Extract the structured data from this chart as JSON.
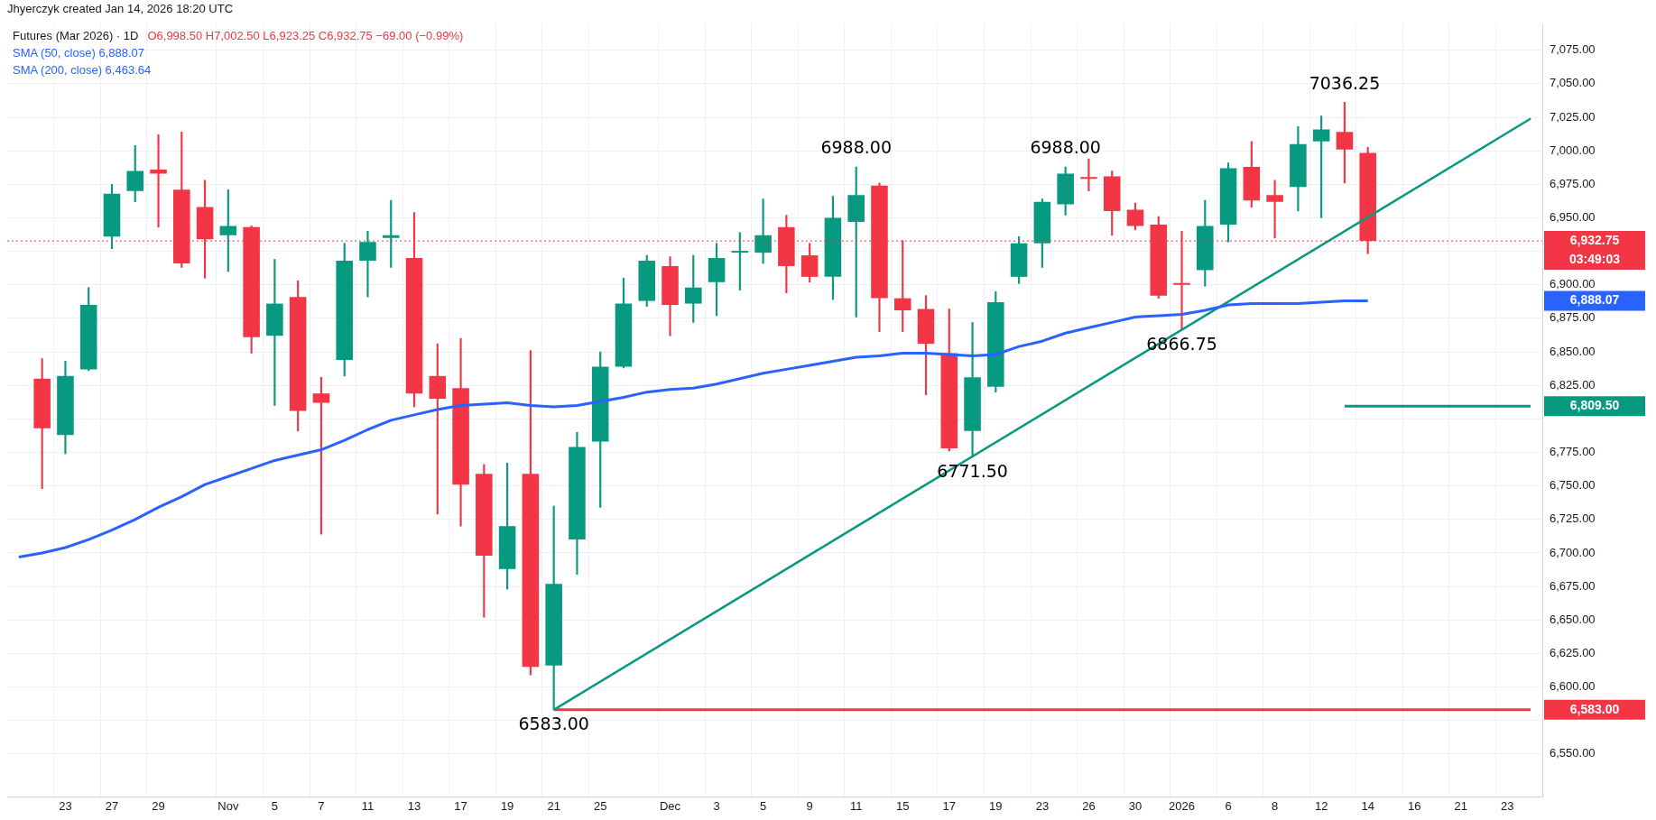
{
  "chart_data": {
    "type": "candlestick",
    "title": "Futures (Mar 2026) · 1D",
    "subtitle": "O6,998.50 H7,002.50 L6,923.25 C6,932.75 −69.00 (−0.99%)",
    "categories": [
      null,
      null,
      "23",
      null,
      "27",
      null,
      "29",
      null,
      null,
      "Nov",
      null,
      "5",
      null,
      "7",
      null,
      "11",
      null,
      "13",
      null,
      "17",
      null,
      "19",
      null,
      "21",
      null,
      "25",
      null,
      null,
      "Dec",
      null,
      "3",
      null,
      "5",
      null,
      "9",
      null,
      "11",
      null,
      "15",
      null,
      "17",
      null,
      "19",
      null,
      "23",
      null,
      "26",
      null,
      "30",
      null,
      "2026",
      null,
      "6",
      null,
      "8",
      null,
      "12",
      null,
      "14",
      null,
      "16",
      null,
      "21",
      null,
      "23",
      null
    ],
    "ohlc": [
      null,
      [
        6830,
        6845,
        6748,
        6793
      ],
      [
        6788,
        6843,
        6774,
        6832
      ],
      [
        6837,
        6898,
        6836,
        6885
      ],
      [
        6936,
        6975,
        6927,
        6968
      ],
      [
        6970,
        7004,
        6962,
        6985
      ],
      [
        6986,
        7012,
        6943,
        6983
      ],
      [
        6971,
        7014,
        6913,
        6916
      ],
      [
        6958,
        6978,
        6905,
        6934
      ],
      [
        6937,
        6971,
        6910,
        6944
      ],
      [
        6943,
        6944,
        6849,
        6861
      ],
      [
        6862,
        6919,
        6810,
        6886
      ],
      [
        6891,
        6903,
        6791,
        6806
      ],
      [
        6819,
        6831,
        6714,
        6812
      ],
      [
        6844,
        6931,
        6832,
        6918
      ],
      [
        6918,
        6940,
        6891,
        6932
      ],
      [
        6935,
        6963,
        6913,
        6937
      ],
      [
        6920,
        6954,
        6809,
        6819
      ],
      [
        6832,
        6856,
        6729,
        6815
      ],
      [
        6823,
        6860,
        6720,
        6751
      ],
      [
        6759,
        6766,
        6652,
        6698
      ],
      [
        6688,
        6767,
        6673,
        6720
      ],
      [
        6759,
        6851,
        6609,
        6615
      ],
      [
        6616,
        6735,
        6583,
        6677
      ],
      [
        6710,
        6790,
        6684,
        6779
      ],
      [
        6783,
        6850,
        6734,
        6839
      ],
      [
        6839,
        6905,
        6838,
        6886
      ],
      [
        6888,
        6922,
        6884,
        6918
      ],
      [
        6914,
        6921,
        6862,
        6885
      ],
      [
        6886,
        6922,
        6872,
        6898
      ],
      [
        6902,
        6931,
        6877,
        6920
      ],
      [
        6924,
        6939,
        6896,
        6925
      ],
      [
        6924,
        6964,
        6916,
        6937
      ],
      [
        6943,
        6952,
        6894,
        6914
      ],
      [
        6922,
        6931,
        6902,
        6906
      ],
      [
        6906,
        6966,
        6889,
        6950
      ],
      [
        6947,
        6988,
        6876,
        6967
      ],
      [
        6974,
        6976,
        6865,
        6890
      ],
      [
        6890,
        6933,
        6865,
        6881
      ],
      [
        6882,
        6892,
        6818,
        6856
      ],
      [
        6849,
        6882,
        6776,
        6778
      ],
      [
        6791,
        6872,
        6771.5,
        6831
      ],
      [
        6824,
        6895,
        6820,
        6887
      ],
      [
        6906,
        6936,
        6901,
        6931
      ],
      [
        6931,
        6964,
        6913,
        6962
      ],
      [
        6960,
        6988,
        6952,
        6983
      ],
      [
        6980,
        6994,
        6970,
        6979
      ],
      [
        6981,
        6985,
        6937,
        6955
      ],
      [
        6956,
        6961,
        6941,
        6944
      ],
      [
        6945,
        6951,
        6890,
        6892
      ],
      [
        6901,
        6940,
        6866.75,
        6900
      ],
      [
        6911,
        6963,
        6899,
        6944
      ],
      [
        6945,
        6991,
        6932,
        6987
      ],
      [
        6988,
        7007,
        6958,
        6963
      ],
      [
        6967,
        6978,
        6935,
        6962
      ],
      [
        6973,
        7018,
        6955,
        7005
      ],
      [
        7007,
        7026,
        6950,
        7016
      ],
      [
        7014,
        7036.25,
        6976,
        7001
      ],
      [
        6998.5,
        7002.5,
        6923.25,
        6932.75
      ],
      null,
      null,
      null,
      null,
      null,
      null,
      null
    ],
    "colors": [
      null,
      "#f23645",
      "#089981",
      "#089981",
      "#089981",
      "#089981",
      "#f23645",
      "#f23645",
      "#f23645",
      "#089981",
      "#f23645",
      "#089981",
      "#f23645",
      "#f23645",
      "#089981",
      "#089981",
      "#089981",
      "#f23645",
      "#f23645",
      "#f23645",
      "#f23645",
      "#089981",
      "#f23645",
      "#089981",
      "#089981",
      "#089981",
      "#089981",
      "#089981",
      "#f23645",
      "#089981",
      "#089981",
      "#089981",
      "#089981",
      "#f23645",
      "#f23645",
      "#089981",
      "#089981",
      "#f23645",
      "#f23645",
      "#f23645",
      "#f23645",
      "#089981",
      "#089981",
      "#089981",
      "#089981",
      "#089981",
      "#f23645",
      "#f23645",
      "#f23645",
      "#f23645",
      "#f23645",
      "#089981",
      "#089981",
      "#f23645",
      "#f23645",
      "#089981",
      "#089981",
      "#f23645",
      "#f23645",
      null,
      null,
      null,
      null,
      null,
      null,
      null
    ],
    "series": [
      {
        "name": "SMA (50, close)",
        "type": "line",
        "color": "#2962ff",
        "values": [
          6697,
          6700,
          6704,
          6710,
          6717,
          6725,
          6734,
          6742,
          6751,
          6757,
          6763,
          6769,
          6773,
          6777,
          6784,
          6792,
          6799,
          6803,
          6807,
          6810,
          6811,
          6812,
          6810,
          6809,
          6810,
          6813,
          6816,
          6820,
          6822,
          6823,
          6826,
          6830,
          6834,
          6837,
          6840,
          6843,
          6846,
          6847,
          6849,
          6849,
          6848,
          6847,
          6848,
          6854,
          6858,
          6864,
          6868,
          6872,
          6876,
          6877,
          6878,
          6881,
          6885,
          6886,
          6886,
          6886,
          6887,
          6888,
          6888.07,
          null,
          null,
          null,
          null,
          null,
          null,
          null
        ]
      },
      {
        "type": "line",
        "color": "#089981",
        "values": [
          null,
          null,
          null,
          null,
          null,
          null,
          null,
          null,
          null,
          null,
          null,
          null,
          null,
          null,
          null,
          null,
          null,
          null,
          null,
          null,
          null,
          null,
          null,
          6583,
          null,
          null,
          null,
          null,
          null,
          null,
          null,
          null,
          null,
          null,
          null,
          null,
          null,
          null,
          null,
          null,
          null,
          null,
          null,
          null,
          null,
          null,
          null,
          null,
          null,
          null,
          null,
          null,
          null,
          null,
          null,
          null,
          null,
          null,
          null,
          null,
          null,
          null,
          null,
          null,
          null,
          7024
        ]
      },
      {
        "name": "6,809.50",
        "type": "line",
        "color": "#089981",
        "values": [
          null,
          null,
          null,
          null,
          null,
          null,
          null,
          null,
          null,
          null,
          null,
          null,
          null,
          null,
          null,
          null,
          null,
          null,
          null,
          null,
          null,
          null,
          null,
          null,
          null,
          null,
          null,
          null,
          null,
          null,
          null,
          null,
          null,
          null,
          null,
          null,
          null,
          null,
          null,
          null,
          null,
          null,
          null,
          null,
          null,
          null,
          null,
          null,
          null,
          null,
          null,
          null,
          null,
          null,
          null,
          null,
          null,
          6809.5,
          null,
          null,
          null,
          null,
          null,
          null,
          null,
          6809.5
        ]
      },
      {
        "name": "6,583.00",
        "type": "line",
        "color": "#f23645",
        "values": [
          null,
          null,
          null,
          null,
          null,
          null,
          null,
          null,
          null,
          null,
          null,
          null,
          null,
          null,
          null,
          null,
          null,
          null,
          null,
          null,
          null,
          null,
          null,
          6583,
          null,
          null,
          null,
          null,
          null,
          null,
          null,
          null,
          null,
          null,
          null,
          null,
          null,
          null,
          null,
          null,
          null,
          null,
          null,
          null,
          null,
          null,
          null,
          null,
          null,
          null,
          null,
          null,
          null,
          null,
          null,
          null,
          null,
          null,
          null,
          null,
          null,
          null,
          null,
          null,
          null,
          6583
        ]
      }
    ],
    "ylim": [
      6518,
      7095
    ],
    "yticks": [
      {
        "value": 6550,
        "label": "6,550.00"
      },
      {
        "value": 6575,
        "label": null
      },
      {
        "value": 6600,
        "label": "6,600.00"
      },
      {
        "value": 6625,
        "label": "6,625.00"
      },
      {
        "value": 6650,
        "label": "6,650.00"
      },
      {
        "value": 6675,
        "label": "6,675.00"
      },
      {
        "value": 6700,
        "label": "6,700.00"
      },
      {
        "value": 6725,
        "label": "6,725.00"
      },
      {
        "value": 6750,
        "label": "6,750.00"
      },
      {
        "value": 6775,
        "label": "6,775.00"
      },
      {
        "value": 6800,
        "label": null
      },
      {
        "value": 6825,
        "label": "6,825.00"
      },
      {
        "value": 6850,
        "label": "6,850.00"
      },
      {
        "value": 6875,
        "label": "6,875.00"
      },
      {
        "value": 6900,
        "label": "6,900.00"
      },
      {
        "value": 6925,
        "label": null
      },
      {
        "value": 6950,
        "label": "6,950.00"
      },
      {
        "value": 6975,
        "label": "6,975.00"
      },
      {
        "value": 7000,
        "label": "7,000.00"
      },
      {
        "value": 7025,
        "label": "7,025.00"
      },
      {
        "value": 7050,
        "label": "7,050.00"
      },
      {
        "value": 7075,
        "label": "7,075.00"
      }
    ],
    "ref_lines": [
      {
        "axis": "y",
        "value": 6932.75,
        "label": "6,932.75",
        "color": "#f23645",
        "line_style": "dotted"
      }
    ],
    "annotations": [
      "Jhyerczyk created Jan 14, 2026 18:20 UTC",
      "SMA (200, close) 6,463.64",
      "03:49:03",
      "6,888.07",
      {
        "text": "6583.00",
        "x": "21",
        "y": 6583
      },
      {
        "text": "6988.00",
        "y": 6988
      },
      {
        "text": "6988.00",
        "y": 6988
      },
      {
        "text": "6771.50",
        "y": 6771.5
      },
      {
        "text": "6866.75",
        "x": "2026",
        "y": 6866.75
      },
      {
        "text": "7036.25",
        "y": 7036.25
      }
    ],
    "grid": true,
    "legend": "top left"
  }
}
